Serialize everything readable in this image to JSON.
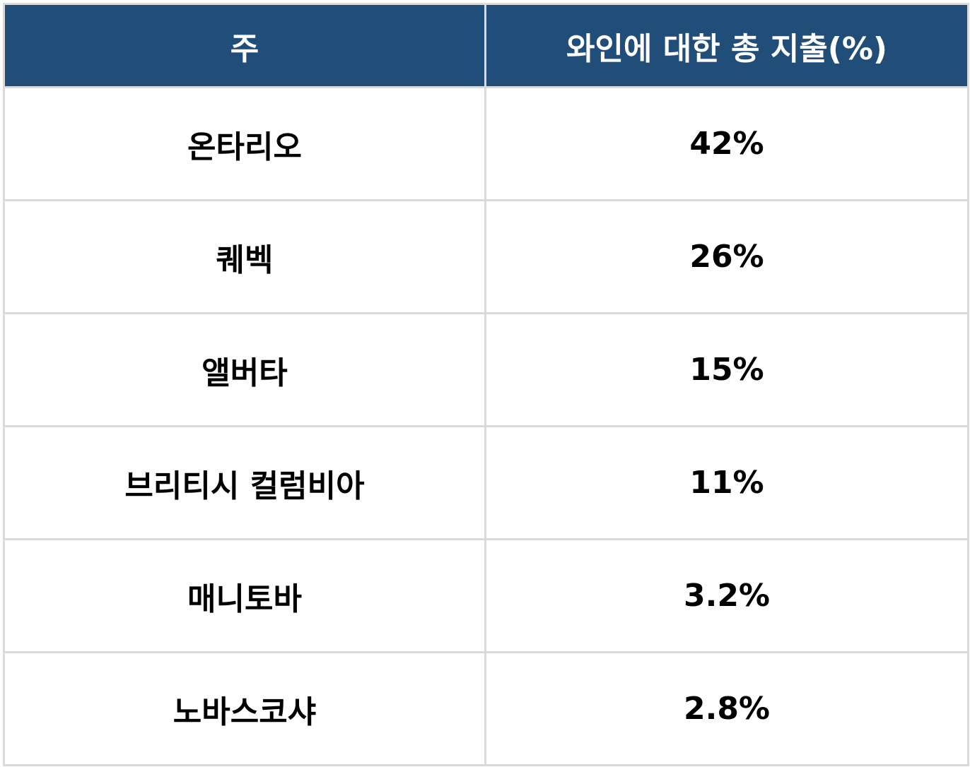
{
  "chart_data": {
    "type": "table",
    "columns": [
      "주",
      "와인에 대한 총 지출(%)"
    ],
    "rows": [
      [
        "온타리오",
        "42%"
      ],
      [
        "퀘벡",
        "26%"
      ],
      [
        "앨버타",
        "15%"
      ],
      [
        "브리티시 컬럼비아",
        "11%"
      ],
      [
        "매니토바",
        "3.2%"
      ],
      [
        "노바스코샤",
        "2.8%"
      ]
    ],
    "values": [
      42,
      26,
      15,
      11,
      3.2,
      2.8
    ]
  },
  "colors": {
    "header_bg": "#214e79",
    "header_text": "#ffffff",
    "grid": "#dadada"
  }
}
